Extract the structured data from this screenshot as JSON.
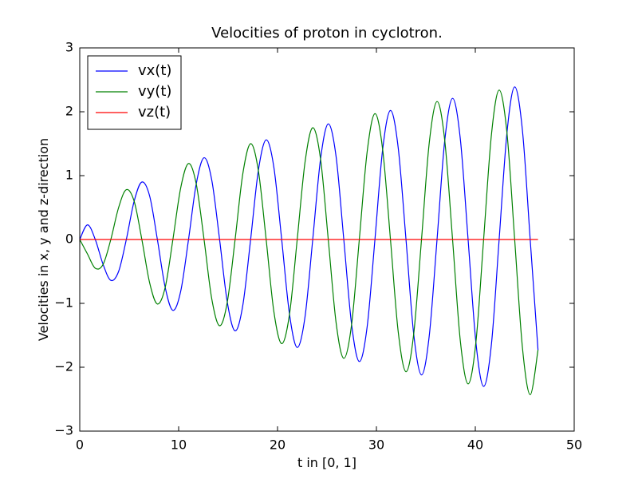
{
  "chart_data": {
    "type": "line",
    "title": "Velocities of proton in cyclotron.",
    "xlabel": "t in [0, 1]",
    "ylabel": "Velocities in x, y and z-direction",
    "x": [
      0,
      0.79,
      1.57,
      2.36,
      3.14,
      3.93,
      4.71,
      5.5,
      6.28,
      7.07,
      7.85,
      8.64,
      9.42,
      10.21,
      11,
      11.78,
      12.57,
      13.35,
      14.14,
      14.92,
      15.71,
      16.49,
      17.28,
      18.06,
      18.85,
      19.63,
      20.42,
      21.21,
      21.99,
      22.78,
      23.56,
      24.35,
      25.13,
      25.92,
      26.7,
      27.49,
      28.27,
      29.06,
      29.85,
      30.63,
      31.42,
      32.2,
      32.99,
      33.77,
      34.56,
      35.34,
      36.13,
      36.91,
      37.7,
      38.48,
      39.27,
      40.06,
      40.84,
      41.63,
      42.41,
      43.2,
      43.98,
      44.77,
      45.55,
      46.34
    ],
    "series": [
      {
        "name": "vx(t)",
        "color": "#0000ff",
        "values": [
          0,
          0.23,
          0,
          -0.39,
          -0.64,
          -0.5,
          0,
          0.6,
          0.9,
          0.68,
          0,
          -0.75,
          -1.11,
          -0.81,
          0,
          0.87,
          1.28,
          0.93,
          0,
          -0.98,
          -1.43,
          -1.03,
          0,
          1.08,
          1.56,
          1.13,
          0,
          -1.17,
          -1.69,
          -1.21,
          0,
          1.26,
          1.81,
          1.3,
          0,
          -1.33,
          -1.91,
          -1.37,
          0,
          1.41,
          2.02,
          1.44,
          0,
          -1.48,
          -2.12,
          -1.51,
          0,
          1.55,
          2.21,
          1.58,
          0,
          -1.61,
          -2.3,
          -1.64,
          0,
          1.67,
          2.39,
          1.7,
          0,
          -1.73
        ]
      },
      {
        "name": "vy(t)",
        "color": "#008000",
        "values": [
          0,
          -0.23,
          -0.45,
          -0.39,
          0,
          0.5,
          0.78,
          0.6,
          0,
          -0.68,
          -1.01,
          -0.75,
          0,
          0.81,
          1.19,
          0.87,
          0,
          -0.93,
          -1.35,
          -0.98,
          0,
          1.03,
          1.5,
          1.08,
          0,
          -1.13,
          -1.63,
          -1.17,
          0,
          1.21,
          1.75,
          1.26,
          0,
          -1.3,
          -1.86,
          -1.33,
          0,
          1.37,
          1.97,
          1.41,
          0,
          -1.44,
          -2.07,
          -1.48,
          0,
          1.51,
          2.16,
          1.55,
          0,
          -1.58,
          -2.26,
          -1.61,
          0,
          1.64,
          2.34,
          1.67,
          0,
          -1.7,
          -2.43,
          -1.73
        ]
      },
      {
        "name": "vz(t)",
        "color": "#ff0000",
        "values": [
          0,
          0,
          0,
          0,
          0,
          0,
          0,
          0,
          0,
          0,
          0,
          0,
          0,
          0,
          0,
          0,
          0,
          0,
          0,
          0,
          0,
          0,
          0,
          0,
          0,
          0,
          0,
          0,
          0,
          0,
          0,
          0,
          0,
          0,
          0,
          0,
          0,
          0,
          0,
          0,
          0,
          0,
          0,
          0,
          0,
          0,
          0,
          0,
          0,
          0,
          0,
          0,
          0,
          0,
          0,
          0,
          0,
          0,
          0,
          0
        ]
      }
    ],
    "xlim": [
      0,
      50
    ],
    "xticks": [
      0,
      10,
      20,
      30,
      40,
      50
    ],
    "ylim": [
      -3,
      3
    ],
    "yticks": [
      {
        "value": -3,
        "label": "−3"
      },
      {
        "value": -2,
        "label": "−2"
      },
      {
        "value": -1,
        "label": "−1"
      },
      0,
      1,
      2,
      3
    ],
    "legend": "upper left",
    "grid": false
  }
}
